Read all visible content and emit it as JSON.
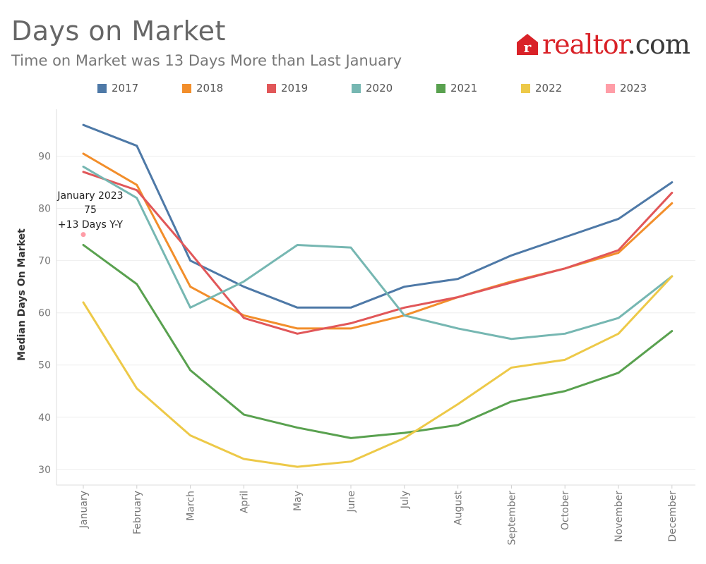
{
  "header": {
    "title": "Days on Market",
    "subtitle": "Time on Market was 13 Days More than Last January"
  },
  "logo": {
    "icon": "house-r-icon",
    "text_red": "realtor",
    "text_dark": ".com",
    "color": "#d92228"
  },
  "chart_data": {
    "type": "line",
    "title": "Days on Market",
    "subtitle": "Time on Market was 13 Days More than Last January",
    "xlabel": "",
    "ylabel": "Median Days On Market",
    "categories": [
      "January",
      "February",
      "March",
      "April",
      "May",
      "June",
      "July",
      "August",
      "September",
      "October",
      "November",
      "December"
    ],
    "ylim": [
      27,
      99
    ],
    "yticks": [
      30,
      40,
      50,
      60,
      70,
      80,
      90
    ],
    "grid": true,
    "legend_position": "top",
    "series": [
      {
        "name": "2017",
        "color": "#4e79a7",
        "values": [
          96,
          92,
          70,
          65,
          61,
          61,
          65,
          66.5,
          71,
          74.5,
          78,
          85
        ]
      },
      {
        "name": "2018",
        "color": "#f28e2b",
        "values": [
          90.5,
          84.5,
          65,
          59.5,
          57,
          57,
          59.5,
          63,
          66,
          68.5,
          71.5,
          81
        ]
      },
      {
        "name": "2019",
        "color": "#e15759",
        "values": [
          87,
          83.5,
          71.5,
          59,
          56,
          58,
          61,
          63,
          65.8,
          68.5,
          72,
          83
        ]
      },
      {
        "name": "2020",
        "color": "#76b7b2",
        "values": [
          88,
          82,
          61,
          66,
          73,
          72.5,
          59.5,
          57,
          55,
          56,
          59,
          67
        ]
      },
      {
        "name": "2021",
        "color": "#59a14f",
        "values": [
          73,
          65.5,
          49,
          40.5,
          38,
          36,
          37,
          38.5,
          43,
          45,
          48.5,
          56.5
        ]
      },
      {
        "name": "2022",
        "color": "#edc948",
        "values": [
          62,
          45.5,
          36.5,
          32,
          30.5,
          31.5,
          36,
          42.5,
          49.5,
          51,
          56,
          67
        ]
      },
      {
        "name": "2023",
        "color": "#ff9da7",
        "values": [
          75,
          null,
          null,
          null,
          null,
          null,
          null,
          null,
          null,
          null,
          null,
          null
        ]
      }
    ],
    "annotation": {
      "line1": "January 2023",
      "line2": "75",
      "line3": "+13 Days Y-Y"
    }
  }
}
